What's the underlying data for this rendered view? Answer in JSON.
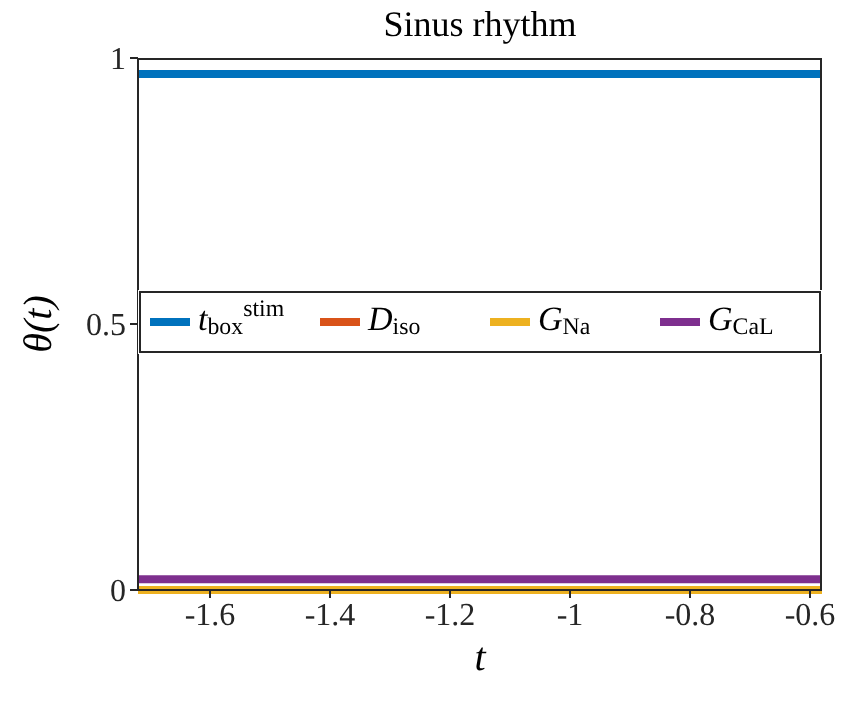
{
  "chart_data": {
    "type": "line",
    "title": "Sinus rhythm",
    "xlabel": "t",
    "ylabel": "θ(t)",
    "x": [
      -1.72,
      -0.58
    ],
    "series": [
      {
        "name": "t$_{box}$$^{stim}$",
        "color": "#0072bd",
        "values": [
          0.97,
          0.97
        ]
      },
      {
        "name": "D$_{iso}$",
        "color": "#d95319",
        "values": [
          null,
          null
        ]
      },
      {
        "name": "G$_{Na}$",
        "color": "#edb120",
        "values": [
          0,
          0
        ]
      },
      {
        "name": "G$_{CaL}$",
        "color": "#7e2f8e",
        "values": [
          0.02,
          0.02
        ]
      }
    ],
    "xlim": [
      -1.72,
      -0.58
    ],
    "xticks": [
      -1.6,
      -1.4,
      -1.2,
      -1,
      -0.8,
      -0.6
    ],
    "ylim": [
      0,
      1
    ],
    "yticks": [
      0,
      0.5,
      1
    ],
    "legend": "center",
    "grid": false,
    "marker": "none",
    "line_style": "solid"
  }
}
